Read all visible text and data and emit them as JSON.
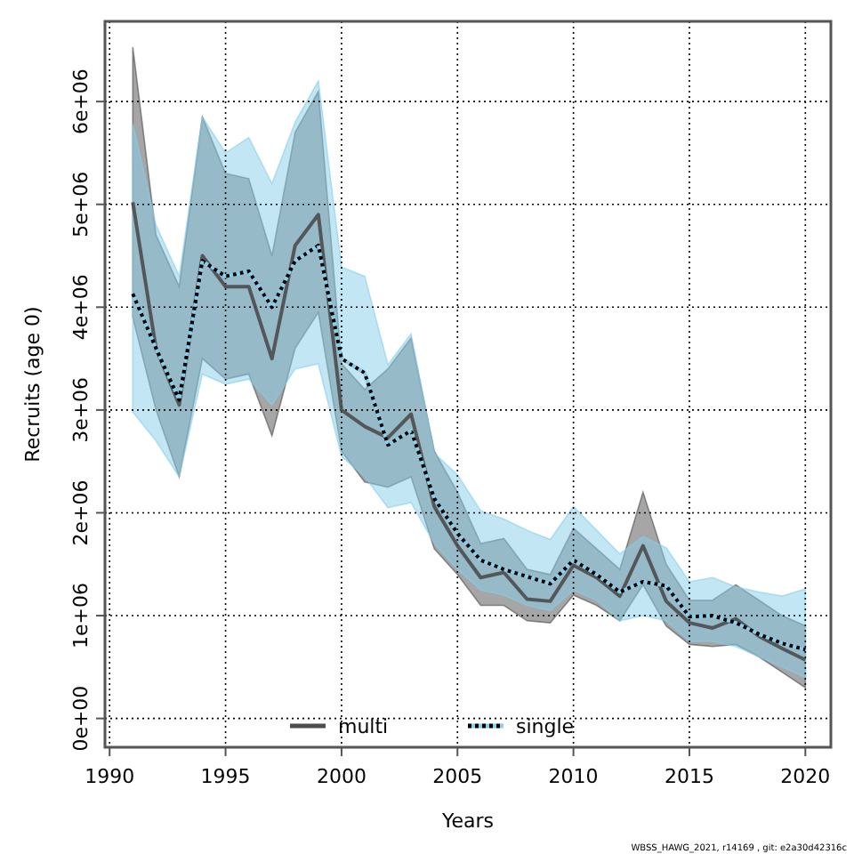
{
  "chart_data": {
    "type": "line",
    "xlabel": "Years",
    "ylabel": "Recruits (age 0)",
    "x": [
      1991,
      1992,
      1993,
      1994,
      1995,
      1996,
      1997,
      1998,
      1999,
      2000,
      2001,
      2002,
      2003,
      2004,
      2005,
      2006,
      2007,
      2008,
      2009,
      2010,
      2011,
      2012,
      2013,
      2014,
      2015,
      2016,
      2017,
      2018,
      2019,
      2020
    ],
    "series": [
      {
        "name": "multi",
        "color": "#4d4d4d",
        "line_style": "solid",
        "values": [
          5020000,
          3600000,
          3050000,
          4500000,
          4200000,
          4200000,
          3500000,
          4600000,
          4900000,
          3000000,
          2840000,
          2730000,
          2960000,
          2060000,
          1680000,
          1370000,
          1420000,
          1160000,
          1140000,
          1490000,
          1370000,
          1190000,
          1680000,
          1140000,
          930000,
          880000,
          970000,
          800000,
          680000,
          570000
        ],
        "lower": [
          3900000,
          3000000,
          2350000,
          3500000,
          3300000,
          3350000,
          2750000,
          3600000,
          3950000,
          2600000,
          2300000,
          2250000,
          2350000,
          1650000,
          1400000,
          1100000,
          1100000,
          950000,
          930000,
          1200000,
          1100000,
          950000,
          1300000,
          900000,
          720000,
          700000,
          720000,
          600000,
          450000,
          300000
        ],
        "upper": [
          6530000,
          4700000,
          4200000,
          5850000,
          5300000,
          5250000,
          4500000,
          5700000,
          6100000,
          3450000,
          3200000,
          3400000,
          3700000,
          2600000,
          2200000,
          1700000,
          1750000,
          1450000,
          1400000,
          1850000,
          1650000,
          1450000,
          2200000,
          1500000,
          1150000,
          1150000,
          1300000,
          1150000,
          1000000,
          900000
        ]
      },
      {
        "name": "single",
        "color": "#87ceeb",
        "line_style": "dotted",
        "values": [
          4130000,
          3600000,
          3100000,
          4450000,
          4300000,
          4350000,
          4000000,
          4450000,
          4600000,
          3500000,
          3360000,
          2660000,
          2800000,
          2140000,
          1800000,
          1540000,
          1450000,
          1380000,
          1310000,
          1540000,
          1400000,
          1230000,
          1330000,
          1290000,
          990000,
          1000000,
          930000,
          820000,
          730000,
          670000
        ],
        "lower": [
          2980000,
          2700000,
          2350000,
          3350000,
          3250000,
          3300000,
          3050000,
          3400000,
          3450000,
          2550000,
          2350000,
          2050000,
          2100000,
          1700000,
          1450000,
          1250000,
          1200000,
          1100000,
          1050000,
          1250000,
          1150000,
          950000,
          1000000,
          950000,
          750000,
          750000,
          700000,
          600000,
          500000,
          400000
        ],
        "upper": [
          5780000,
          4800000,
          4300000,
          5850000,
          5500000,
          5650000,
          5200000,
          5800000,
          6200000,
          4390000,
          4300000,
          3440000,
          3740000,
          2580000,
          2370000,
          2020000,
          1940000,
          1830000,
          1740000,
          2060000,
          1830000,
          1600000,
          1770000,
          1660000,
          1330000,
          1370000,
          1280000,
          1230000,
          1190000,
          1260000
        ]
      }
    ],
    "xlim": [
      1989.8,
      2021.1
    ],
    "xticks": [
      1990,
      1995,
      2000,
      2005,
      2010,
      2015,
      2020
    ],
    "ylim": [
      -280000,
      6780000
    ],
    "yticks": [
      {
        "value": 0,
        "label": "0e+00"
      },
      {
        "value": 1000000,
        "label": "1e+06"
      },
      {
        "value": 2000000,
        "label": "2e+06"
      },
      {
        "value": 3000000,
        "label": "3e+06"
      },
      {
        "value": 4000000,
        "label": "4e+06"
      },
      {
        "value": 5000000,
        "label": "5e+06"
      },
      {
        "value": 6000000,
        "label": "6e+06"
      }
    ],
    "grid": true,
    "legend": "bottom",
    "annotations": [
      "WBSS_HAWG_2021, r14169 , git: e2a30d42316c"
    ]
  }
}
